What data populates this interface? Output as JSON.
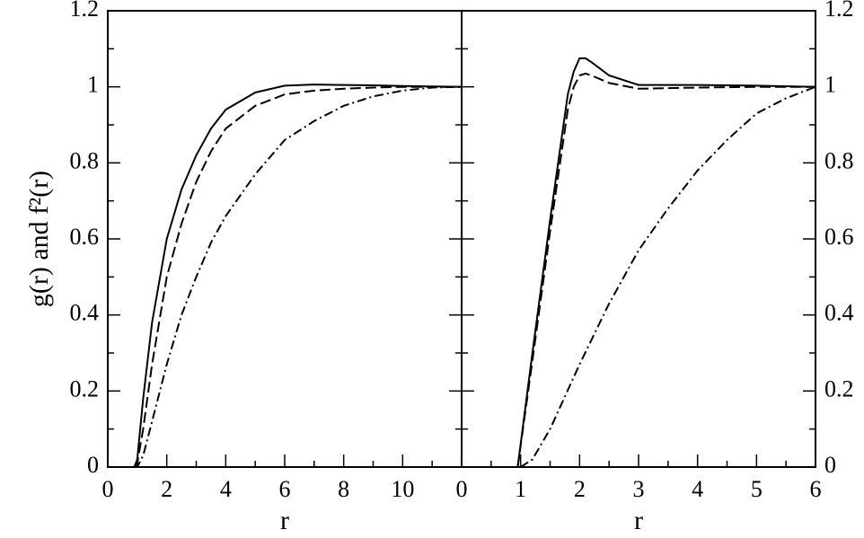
{
  "chart_data": [
    {
      "type": "line",
      "ylabel": "g(r)  and  f²(r)",
      "xlabel": "r",
      "xlim": [
        0,
        12
      ],
      "xticks": [
        0,
        2,
        4,
        6,
        8,
        10
      ],
      "xminorticks": [
        1,
        3,
        5,
        7,
        9,
        11
      ],
      "ylim": [
        0,
        1.2
      ],
      "yticks": [
        0,
        0.2,
        0.4,
        0.6,
        0.8,
        1,
        1.2
      ],
      "yminorticks": [
        0.1,
        0.3,
        0.5,
        0.7,
        0.9,
        1.1
      ],
      "ytick_side": "left",
      "series": [
        {
          "color": "#000000",
          "dash": "solid",
          "x": [
            0.9,
            1.0,
            1.2,
            1.5,
            2,
            2.5,
            3,
            3.5,
            4,
            5,
            6,
            7,
            8,
            9,
            10,
            11,
            12
          ],
          "values": [
            0,
            0.02,
            0.18,
            0.38,
            0.6,
            0.73,
            0.82,
            0.89,
            0.94,
            0.985,
            1.003,
            1.006,
            1.005,
            1.004,
            1.002,
            1.001,
            1.0
          ]
        },
        {
          "color": "#000000",
          "dash": "dashed",
          "x": [
            0.9,
            1.0,
            1.2,
            1.5,
            2,
            2.5,
            3,
            3.5,
            4,
            5,
            6,
            7,
            8,
            9,
            10,
            11,
            12
          ],
          "values": [
            0,
            0.01,
            0.1,
            0.27,
            0.5,
            0.64,
            0.75,
            0.83,
            0.89,
            0.95,
            0.98,
            0.99,
            0.995,
            0.998,
            1.0,
            1.0,
            1.0
          ]
        },
        {
          "color": "#000000",
          "dash": "dashdot",
          "x": [
            0.9,
            1.0,
            1.2,
            1.5,
            2,
            2.5,
            3,
            3.5,
            4,
            5,
            6,
            7,
            8,
            9,
            10,
            11,
            12
          ],
          "values": [
            0,
            0,
            0.03,
            0.12,
            0.27,
            0.4,
            0.5,
            0.59,
            0.66,
            0.77,
            0.86,
            0.91,
            0.95,
            0.975,
            0.99,
            0.998,
            1.0
          ]
        }
      ]
    },
    {
      "type": "line",
      "xlabel": "r",
      "xlim": [
        0,
        6
      ],
      "xticks": [
        0,
        1,
        2,
        3,
        4,
        5,
        6
      ],
      "xminorticks": [
        0.5,
        1.5,
        2.5,
        3.5,
        4.5,
        5.5
      ],
      "ylim": [
        0,
        1.2
      ],
      "yticks": [
        0,
        0.2,
        0.4,
        0.6,
        0.8,
        1,
        1.2
      ],
      "yminorticks": [
        0.1,
        0.3,
        0.5,
        0.7,
        0.9,
        1.1
      ],
      "ytick_side": "right",
      "series": [
        {
          "color": "#000000",
          "dash": "solid",
          "x": [
            0.95,
            1.2,
            1.5,
            1.8,
            1.9,
            2.0,
            2.1,
            2.2,
            2.5,
            3,
            4,
            5,
            6
          ],
          "values": [
            0,
            0.3,
            0.65,
            0.98,
            1.04,
            1.075,
            1.075,
            1.065,
            1.03,
            1.005,
            1.005,
            1.003,
            1.0
          ]
        },
        {
          "color": "#000000",
          "dash": "dashed",
          "x": [
            0.95,
            1.2,
            1.5,
            1.8,
            1.9,
            2.0,
            2.1,
            2.2,
            2.5,
            3,
            4,
            5,
            6
          ],
          "values": [
            0,
            0.28,
            0.62,
            0.94,
            1.0,
            1.03,
            1.035,
            1.03,
            1.01,
            0.995,
            0.998,
            1.0,
            1.0
          ]
        },
        {
          "color": "#000000",
          "dash": "dashdot",
          "x": [
            1.0,
            1.2,
            1.5,
            2,
            2.5,
            3,
            3.5,
            4,
            4.5,
            5,
            5.5,
            6
          ],
          "values": [
            0,
            0.02,
            0.1,
            0.27,
            0.43,
            0.57,
            0.68,
            0.78,
            0.86,
            0.93,
            0.97,
            1.0
          ]
        }
      ]
    }
  ]
}
